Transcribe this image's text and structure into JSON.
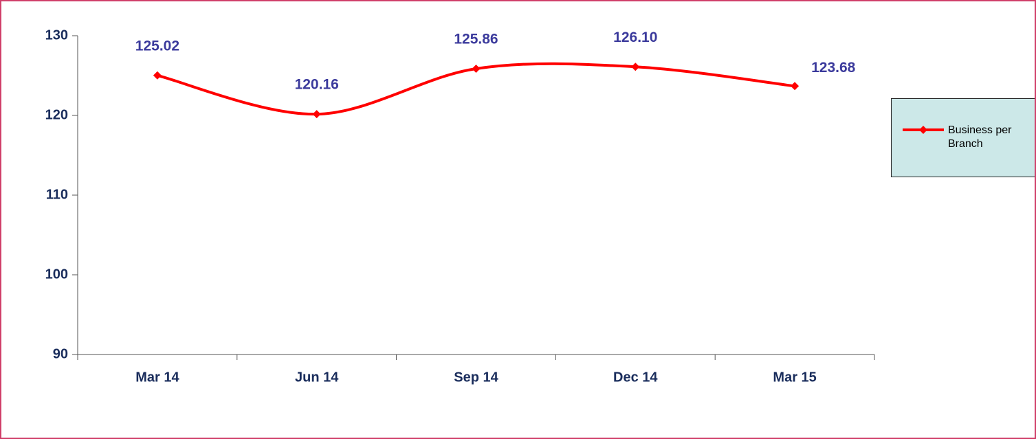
{
  "chart_data": {
    "type": "line",
    "categories": [
      "Mar 14",
      "Jun 14",
      "Sep 14",
      "Dec 14",
      "Mar 15"
    ],
    "series": [
      {
        "name": "Business per Branch",
        "color": "#ff0000",
        "values": [
          125.02,
          120.16,
          125.86,
          126.1,
          123.68
        ],
        "value_labels": [
          "125.02",
          "120.16",
          "125.86",
          "126.10",
          "123.68"
        ]
      }
    ],
    "ylim": [
      90,
      130
    ],
    "yticks": [
      90,
      100,
      110,
      120,
      130
    ],
    "smooth": true,
    "legend": "right",
    "grid": false
  }
}
